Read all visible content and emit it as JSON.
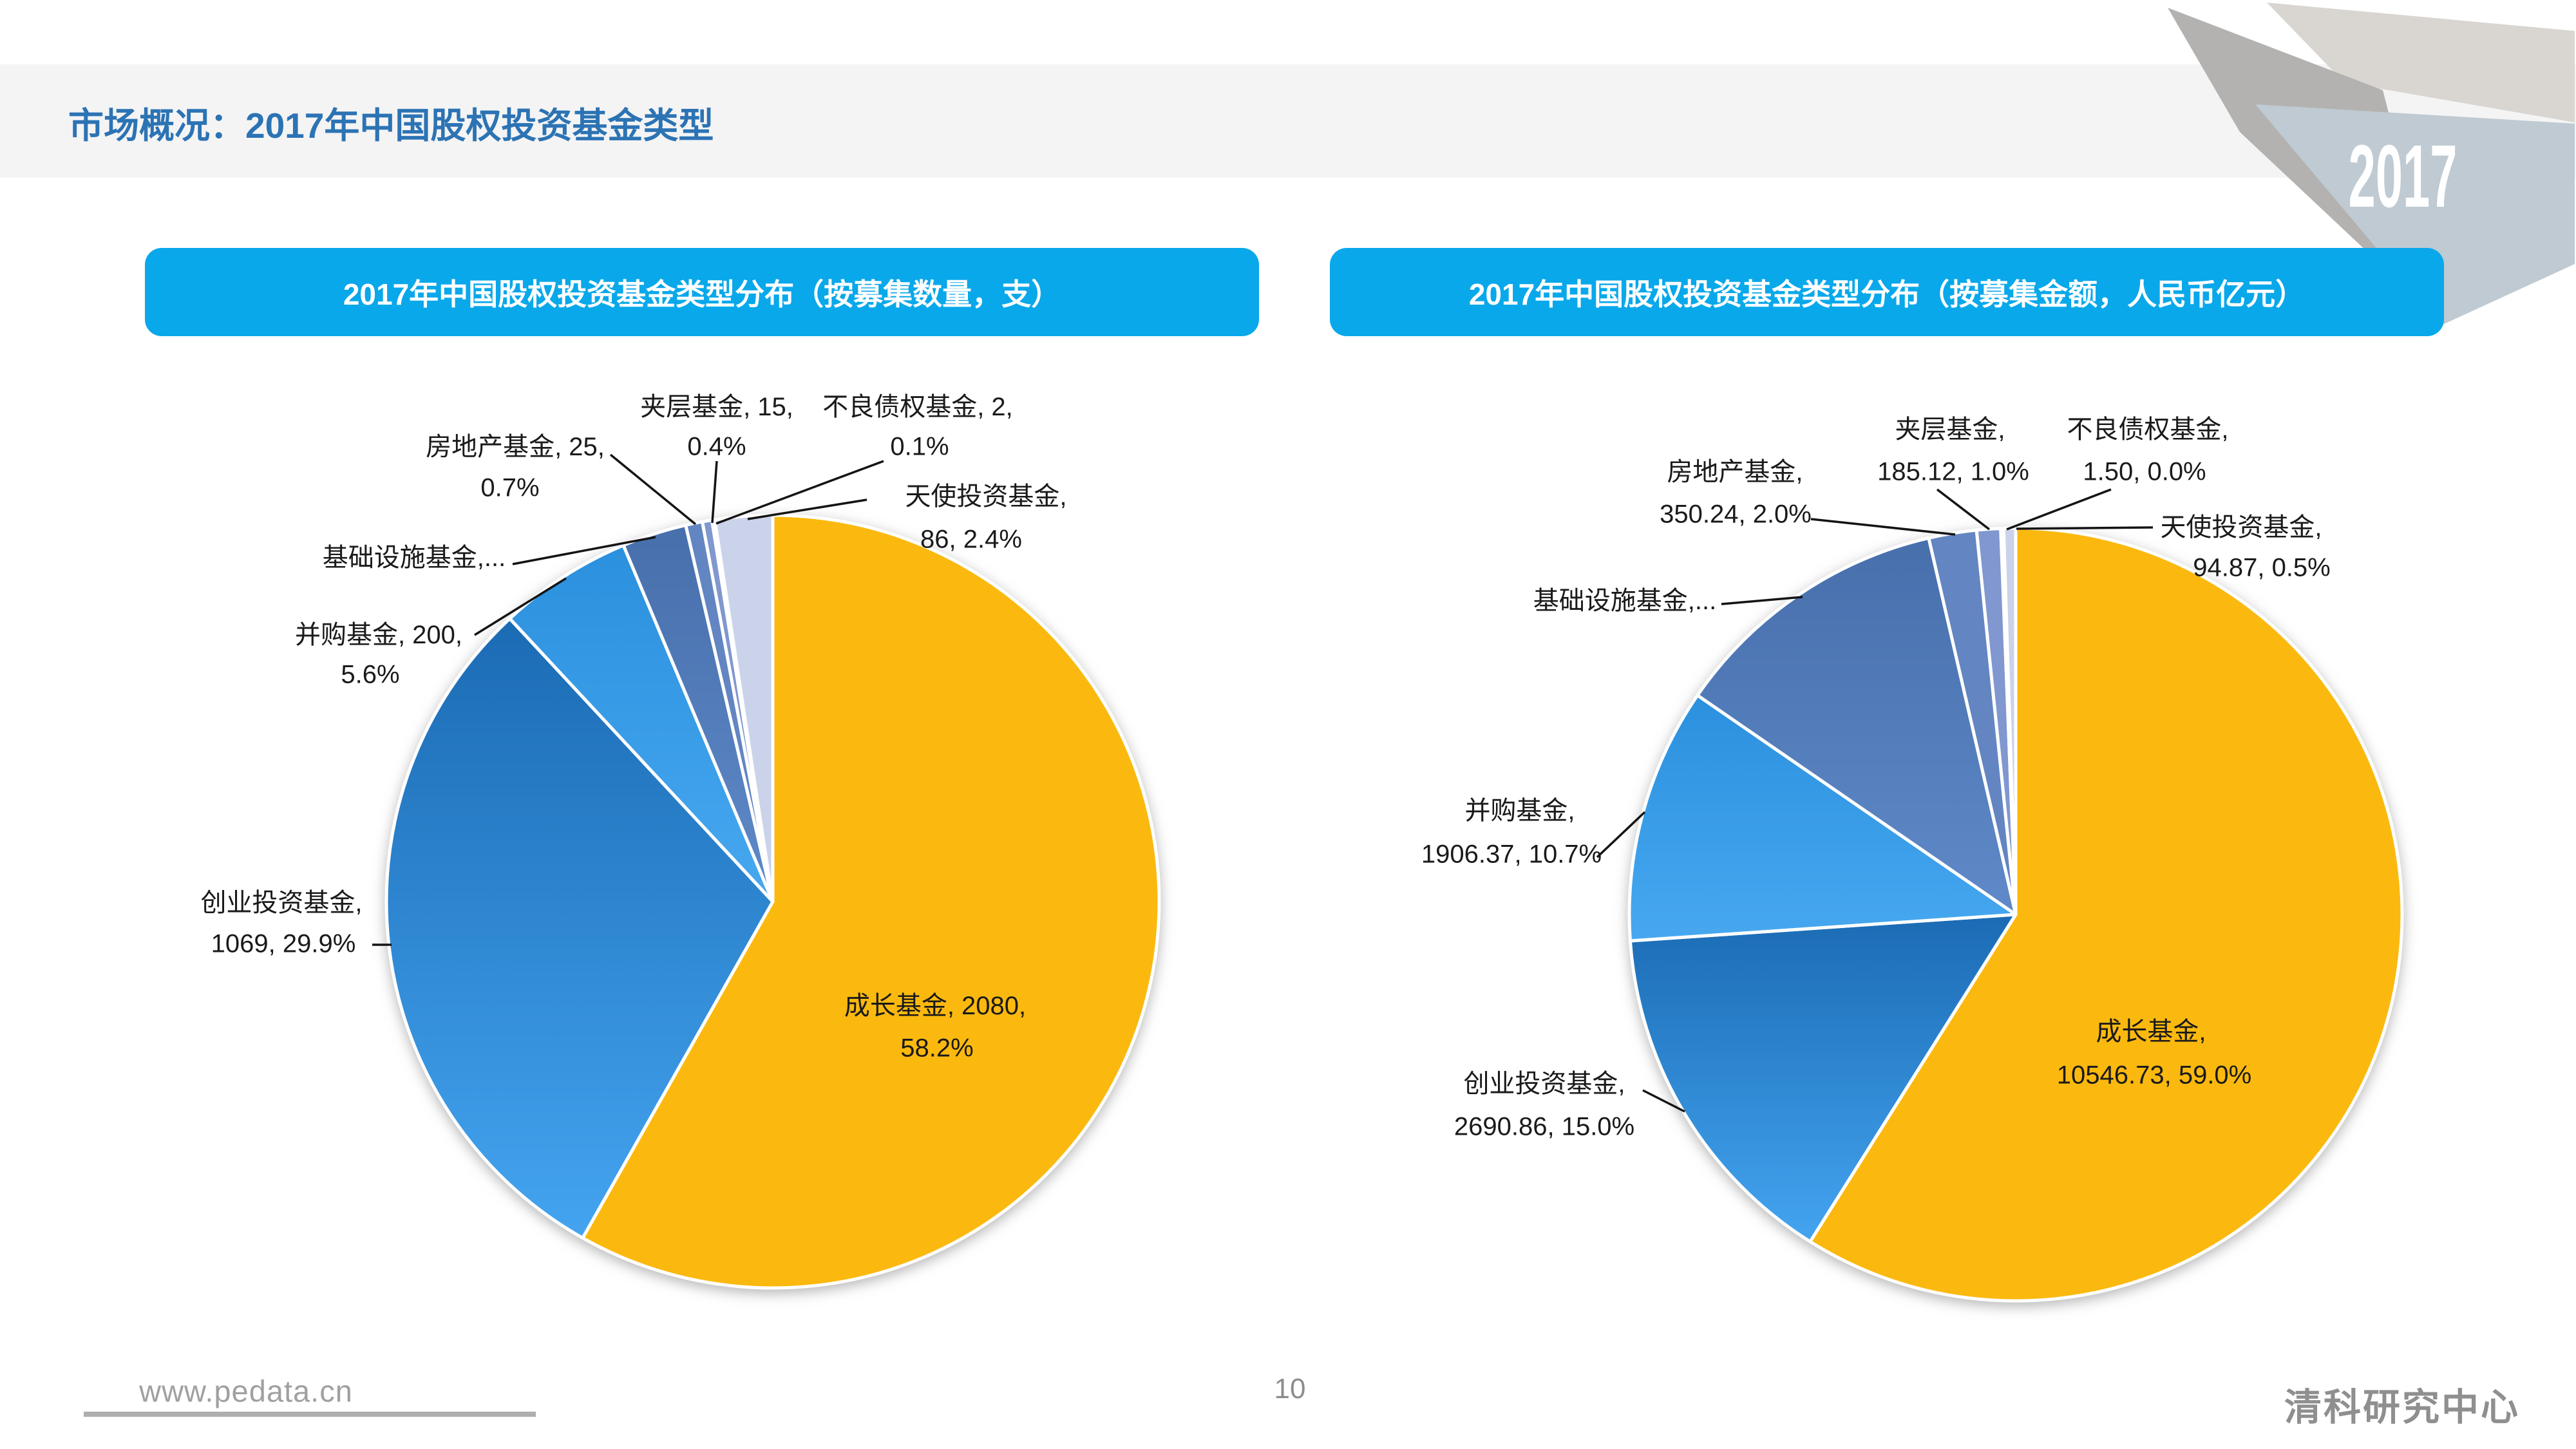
{
  "page": {
    "title": "市场概况：2017年中国股权投资基金类型",
    "year_badge": "2017",
    "footer_site": "www.pedata.cn",
    "page_number": "10",
    "brand": "清科研究中心"
  },
  "accent_colors": {
    "banner_blue": "#09a8ea",
    "title_blue": "#2c73b4",
    "growth_yellow": "#fbb90f"
  },
  "chart_data": [
    {
      "type": "pie",
      "title": "2017年中国股权投资基金类型分布（按募集数量，支）",
      "unit": "支",
      "direction": "clockwise",
      "start_angle_deg": 0,
      "slices": [
        {
          "name": "成长基金",
          "value": 2080,
          "pct": 58.2,
          "color": "#fbb90f"
        },
        {
          "name": "创业投资基金",
          "value": 1069,
          "pct": 29.9,
          "color": "#1b6bb4",
          "color2": "#44a4f0"
        },
        {
          "name": "并购基金",
          "value": 200,
          "pct": 5.6,
          "color": "#2b90de",
          "color2": "#47a8f0"
        },
        {
          "name": "基础设施基金",
          "pct": 2.7,
          "color": "#476fac",
          "color2": "#5f89c8"
        },
        {
          "name": "房地产基金",
          "value": 25,
          "pct": 0.7,
          "color": "#6385c2"
        },
        {
          "name": "夹层基金",
          "value": 15,
          "pct": 0.4,
          "color": "#8097cf"
        },
        {
          "name": "不良债权基金",
          "value": 2,
          "pct": 0.1,
          "color": "#a2afdb"
        },
        {
          "name": "天使投资基金",
          "value": 86,
          "pct": 2.4,
          "color": "#cbd3ea"
        }
      ],
      "callouts": {
        "mezz1": "夹层基金, 15,",
        "mezz2": "0.4%",
        "npl1": "不良债权基金, 2,",
        "npl2": "0.1%",
        "re1": "房地产基金, 25,",
        "re2": "0.7%",
        "infra": "基础设施基金,...",
        "ma1": "并购基金, 200,",
        "ma2": "5.6%",
        "vc1": "创业投资基金,",
        "vc2": "1069, 29.9%",
        "growth1": "成长基金, 2080,",
        "growth2": "58.2%",
        "angel1": "天使投资基金,",
        "angel2": "86, 2.4%"
      }
    },
    {
      "type": "pie",
      "title": "2017年中国股权投资基金类型分布（按募集金额，人民币亿元）",
      "unit": "人民币亿元",
      "direction": "clockwise",
      "start_angle_deg": 0,
      "slices": [
        {
          "name": "成长基金",
          "value": 10546.73,
          "pct": 59.0,
          "color": "#fbb90f"
        },
        {
          "name": "创业投资基金",
          "value": 2690.86,
          "pct": 15.0,
          "color": "#1b6bb4",
          "color2": "#44a4f0"
        },
        {
          "name": "并购基金",
          "value": 1906.37,
          "pct": 10.7,
          "color": "#2b90de",
          "color2": "#47a8f0"
        },
        {
          "name": "基础设施基金",
          "pct": 11.8,
          "color": "#476fac",
          "color2": "#5f89c8"
        },
        {
          "name": "房地产基金",
          "value": 350.24,
          "pct": 2.0,
          "color": "#6385c2"
        },
        {
          "name": "夹层基金",
          "value": 185.12,
          "pct": 1.0,
          "color": "#8097cf"
        },
        {
          "name": "不良债权基金",
          "value": 1.5,
          "pct": 0.0,
          "color": "#a2afdb"
        },
        {
          "name": "天使投资基金",
          "value": 94.87,
          "pct": 0.5,
          "color": "#cbd3ea"
        }
      ],
      "callouts": {
        "mezz1": "夹层基金,",
        "mezz2": "185.12, 1.0%",
        "npl1": "不良债权基金,",
        "npl2": "1.50, 0.0%",
        "re1": "房地产基金,",
        "re2": "350.24, 2.0%",
        "infra": "基础设施基金,...",
        "ma1": "并购基金,",
        "ma2": "1906.37, 10.7%",
        "vc1": "创业投资基金,",
        "vc2": "2690.86, 15.0%",
        "growth1": "成长基金,",
        "growth2": "10546.73, 59.0%",
        "angel1": "天使投资基金,",
        "angel2": "94.87, 0.5%"
      }
    }
  ]
}
